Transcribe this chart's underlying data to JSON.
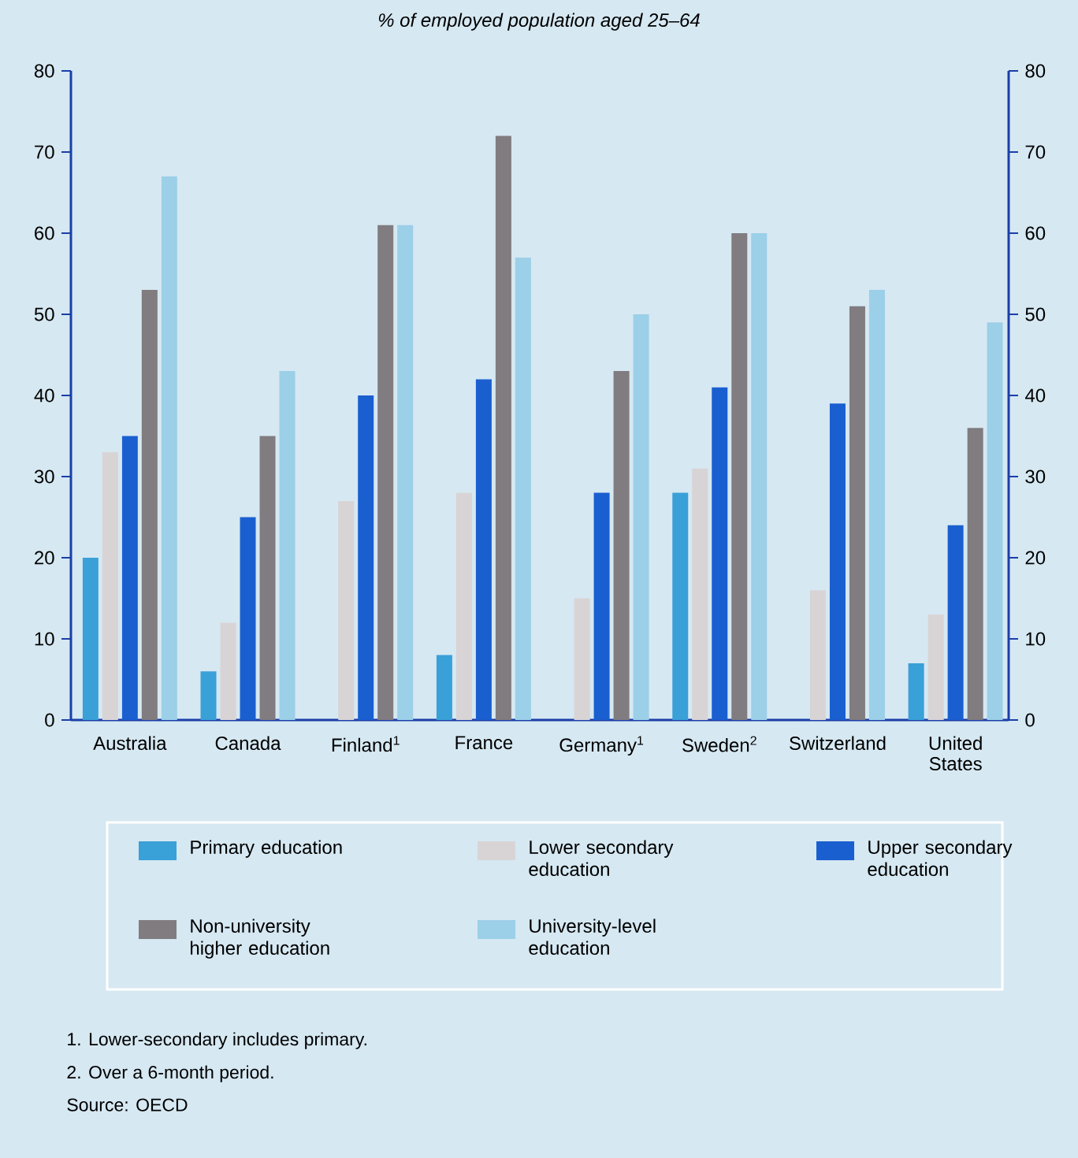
{
  "chart_data": {
    "type": "bar",
    "title": "% of employed population aged 25–64",
    "categories": [
      "Australia",
      "Canada",
      "Finland$^{1}$",
      "France",
      "Germany$^{1}$",
      "Sweden$^{2}$",
      "Switzerland",
      "United States"
    ],
    "series": [
      {
        "name": "Primary education",
        "color": "#3aa0d8",
        "values": [
          20,
          6,
          null,
          8,
          null,
          28,
          null,
          7
        ]
      },
      {
        "name": "Lower secondary education",
        "color": "#d8d4d6",
        "values": [
          33,
          12,
          27,
          28,
          15,
          31,
          16,
          13
        ]
      },
      {
        "name": "Upper secondary education",
        "color": "#1a5fd0",
        "values": [
          35,
          25,
          40,
          42,
          28,
          41,
          39,
          24
        ]
      },
      {
        "name": "Non-university higher education",
        "color": "#807c80",
        "values": [
          53,
          35,
          61,
          72,
          43,
          60,
          51,
          36
        ]
      },
      {
        "name": "University-level education",
        "color": "#9ccfe8",
        "values": [
          67,
          43,
          61,
          57,
          50,
          60,
          53,
          49
        ]
      }
    ],
    "ylim": [
      0,
      80
    ],
    "yticks": [
      0,
      10,
      20,
      30,
      40,
      50,
      60,
      70,
      80
    ],
    "y2lim": [
      0,
      80
    ],
    "y2ticks": [
      0,
      10,
      20,
      30,
      40,
      50,
      60,
      70,
      80
    ],
    "legend": "bottom",
    "annotations": [
      "1. Lower-secondary includes primary.",
      "2. Over a 6-month period.",
      "Source: OECD"
    ]
  }
}
